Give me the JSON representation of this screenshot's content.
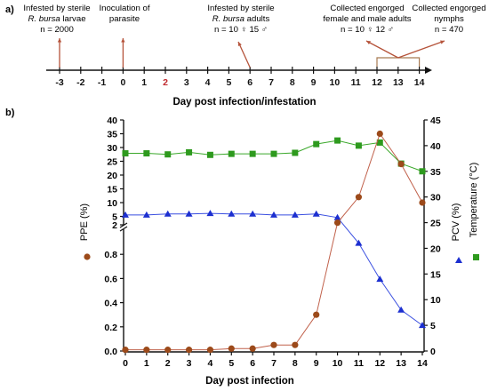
{
  "panel_a": {
    "label": "a)",
    "axis_title": "Day post infection/infestation",
    "ticks": [
      "-3",
      "-2",
      "-1",
      "0",
      "1",
      "2",
      "3",
      "4",
      "5",
      "6",
      "7",
      "8",
      "9",
      "10",
      "11",
      "12",
      "13",
      "14"
    ],
    "highlight_tick": "2",
    "events": [
      {
        "lines": [
          "Infested by sterile",
          "R. bursa larvae",
          "n = 2000"
        ],
        "day": -3
      },
      {
        "lines": [
          "Inoculation of",
          "parasite"
        ],
        "day": 0
      },
      {
        "lines": [
          "Infested by sterile",
          "R. bursa adults",
          "n = 10 ♀ 15 ♂"
        ],
        "day": 6
      },
      {
        "lines": [
          "Collected engorged",
          "female and male adults",
          "n = 10 ♀ 12 ♂"
        ],
        "day": 12
      },
      {
        "lines": [
          "Collected engorged",
          "nymphs",
          "n = 470"
        ],
        "day": 14
      }
    ],
    "colors": {
      "arrow": "#b5533a",
      "bracket": "#a87a52",
      "axis": "#111111",
      "highlight": "#c0282d"
    }
  },
  "panel_b": {
    "label": "b)"
  },
  "chart_data": {
    "type": "line",
    "title": "",
    "xlabel": "Day post infection",
    "x": [
      0,
      1,
      2,
      3,
      4,
      5,
      6,
      7,
      8,
      9,
      10,
      11,
      12,
      13,
      14
    ],
    "xlim": [
      0,
      14
    ],
    "y_left": {
      "label": "PPE (%)",
      "broken_axis": true,
      "upper_range": [
        2,
        40
      ],
      "upper_ticks": [
        5,
        10,
        15,
        20,
        25,
        30,
        35,
        40
      ],
      "upper_extra_tick": 2,
      "lower_range": [
        0,
        1.0
      ],
      "lower_ticks": [
        0.0,
        0.2,
        0.4,
        0.6,
        0.8
      ],
      "lower_tick_labels": [
        "0.0",
        "0.2",
        "0.4",
        "0.6",
        "0.8"
      ]
    },
    "y_right": {
      "label_pcv": "PCV (%)",
      "label_temp": "Temperature (°C)",
      "range": [
        0,
        45
      ],
      "ticks": [
        0,
        5,
        10,
        15,
        20,
        25,
        30,
        35,
        40,
        45
      ]
    },
    "series": [
      {
        "axis": "left",
        "marker": "circle",
        "color": "#9c4a1a",
        "line_color": "#c0604a",
        "values": [
          0.01,
          0.01,
          0.01,
          0.01,
          0.01,
          0.02,
          0.02,
          0.05,
          0.05,
          0.3,
          2.7,
          12,
          35,
          24,
          10
        ]
      },
      {
        "axis": "right",
        "marker": "triangle",
        "color": "#1c2fd0",
        "line_color": "#3a4fe0",
        "values": [
          26.5,
          26.5,
          26.7,
          26.7,
          26.8,
          26.7,
          26.7,
          26.5,
          26.5,
          26.7,
          26,
          21,
          14,
          8,
          5
        ]
      },
      {
        "axis": "right",
        "marker": "square",
        "color": "#2e9a1e",
        "line_color": "#3aa82a",
        "values": [
          38.5,
          38.5,
          38.3,
          38.7,
          38.2,
          38.4,
          38.4,
          38.4,
          38.6,
          40.3,
          41,
          40,
          40.6,
          36.5,
          35
        ]
      }
    ],
    "legend": {
      "placement": "right-middle"
    }
  }
}
